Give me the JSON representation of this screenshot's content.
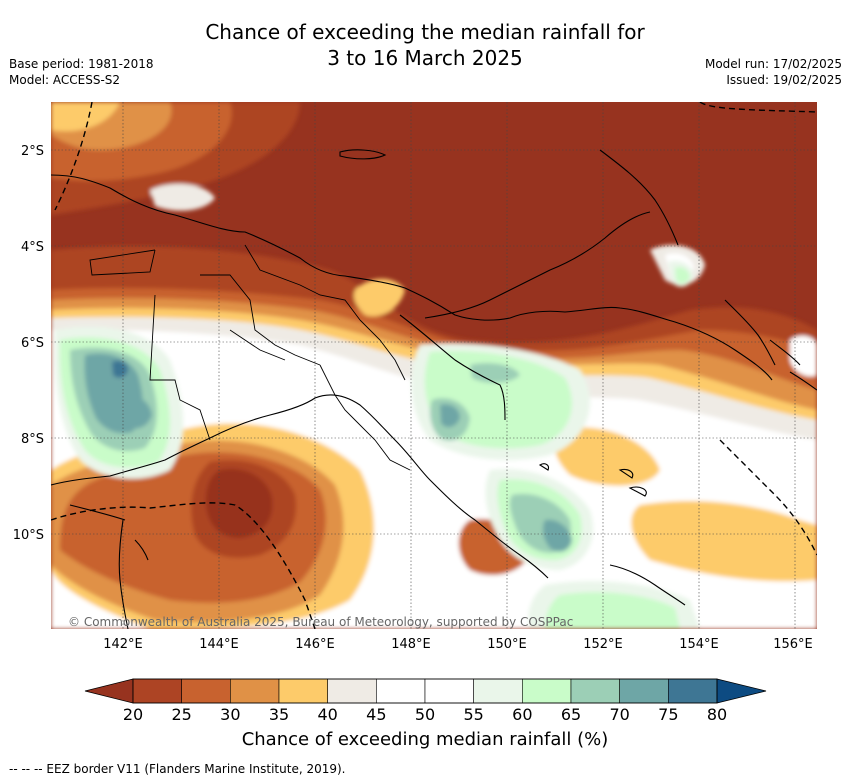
{
  "title_line1": "Chance of exceeding the median rainfall for",
  "title_line2": "3 to 16 March 2025",
  "base_period": "Base period: 1981-2018",
  "model": "Model: ACCESS-S2",
  "model_run": "Model run: 17/02/2025",
  "issued": "Issued: 19/02/2025",
  "latitude_labels": [
    "2°S",
    "4°S",
    "6°S",
    "8°S",
    "10°S"
  ],
  "longitude_labels": [
    "142°E",
    "144°E",
    "146°E",
    "148°E",
    "150°E",
    "152°E",
    "154°E",
    "156°E"
  ],
  "copyright": "© Commonwealth of Australia 2025, Bureau of Meteorology, supported by COSPPac",
  "colorbar": {
    "ticks": [
      "20",
      "25",
      "30",
      "35",
      "40",
      "45",
      "50",
      "55",
      "60",
      "65",
      "70",
      "75",
      "80"
    ],
    "colors": [
      "#ad4424",
      "#c8622f",
      "#e09146",
      "#fdcb6a",
      "#efebe5",
      "#ffffff",
      "#ffffff",
      "#eaf6ea",
      "#c9fcc9",
      "#9ccfb6",
      "#6ea6a6",
      "#3e7694"
    ],
    "low_extension_color": "#97331f",
    "high_extension_color": "#0d4b82",
    "label": "Chance of exceeding median rainfall (%)"
  },
  "legend_line": "--  --  -- EEZ border V11 (Flanders Marine Institute, 2019)."
}
